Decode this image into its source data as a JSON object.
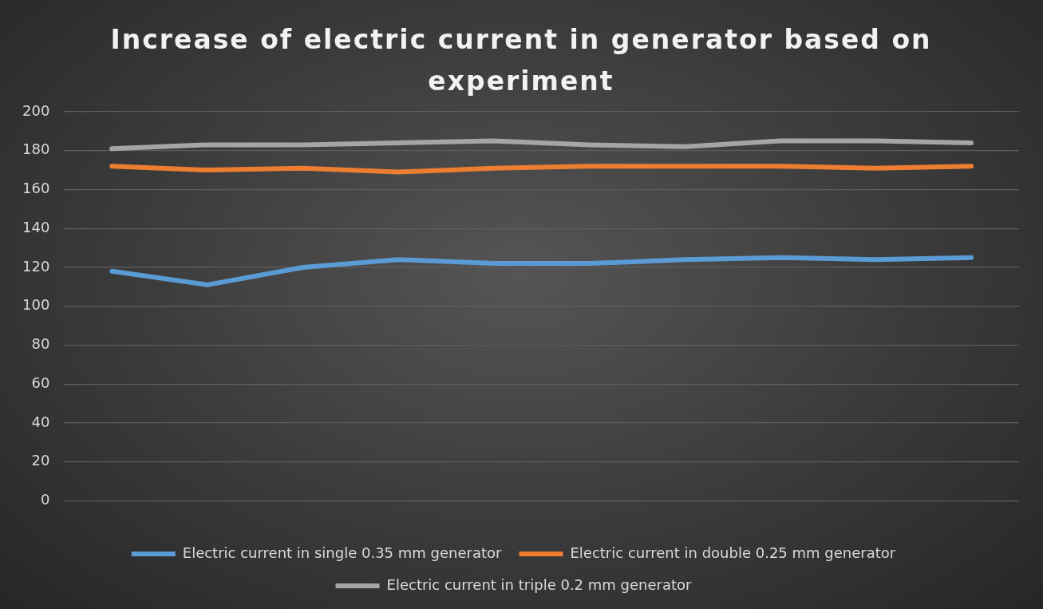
{
  "chart_data": {
    "type": "line",
    "title": "Increase of electric current in generator based on experiment",
    "categories": [
      null,
      null,
      null,
      null,
      null,
      null,
      null,
      null,
      null,
      null
    ],
    "series": [
      {
        "name": "Electric current in single 0.35 mm generator",
        "color": "#5b9bd5",
        "values": [
          118,
          111,
          120,
          124,
          122,
          122,
          124,
          125,
          124,
          125
        ]
      },
      {
        "name": "Electric current in double 0.25 mm generator",
        "color": "#ed7d31",
        "values": [
          172,
          170,
          171,
          169,
          171,
          172,
          172,
          172,
          171,
          172
        ]
      },
      {
        "name": "Electric current in triple 0.2 mm generator",
        "color": "#a5a5a5",
        "values": [
          181,
          183,
          183,
          184,
          185,
          183,
          182,
          185,
          185,
          184
        ]
      }
    ],
    "ylim": [
      0,
      200
    ],
    "yticks": [
      0,
      20,
      40,
      60,
      80,
      100,
      120,
      140,
      160,
      180,
      200
    ],
    "grid": "y",
    "legend": "bottom",
    "marker": "none",
    "line_style": "solid"
  }
}
